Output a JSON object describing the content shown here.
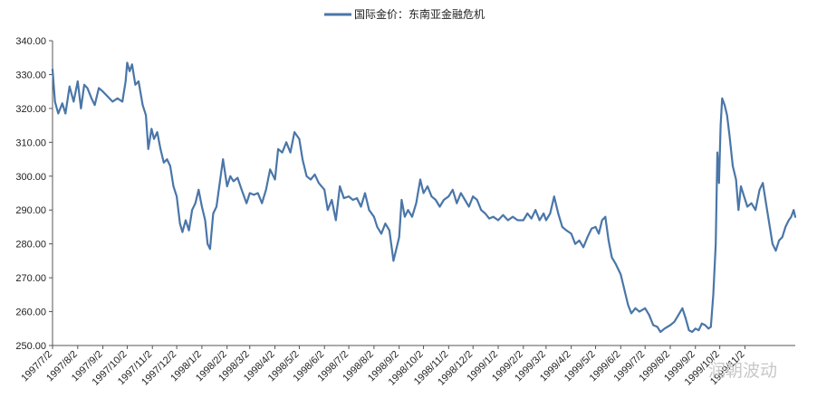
{
  "chart_data": {
    "type": "line",
    "title": "",
    "xlabel": "",
    "ylabel": "",
    "legend_position": "top-center",
    "grid": false,
    "ylim": [
      250,
      340
    ],
    "y_ticks": [
      "250.00",
      "260.00",
      "270.00",
      "280.00",
      "290.00",
      "300.00",
      "310.00",
      "320.00",
      "330.00",
      "340.00"
    ],
    "x_ticks": [
      "1997/7/2",
      "1997/8/2",
      "1997/9/2",
      "1997/10/2",
      "1997/11/2",
      "1997/12/2",
      "1998/1/2",
      "1998/2/2",
      "1998/3/2",
      "1998/4/2",
      "1998/5/2",
      "1998/6/2",
      "1998/7/2",
      "1998/8/2",
      "1998/9/2",
      "1998/10/2",
      "1998/11/2",
      "1998/12/2",
      "1999/1/2",
      "1999/2/2",
      "1999/3/2",
      "1999/4/2",
      "1999/5/2",
      "1999/6/2",
      "1999/7/2",
      "1999/8/2",
      "1999/9/2",
      "1999/10/2",
      "1999/11/2"
    ],
    "series": [
      {
        "name": "国际金价：东南亚金融危机",
        "color": "#4a76a8",
        "points": [
          [
            "1997/7/2",
            331.5
          ],
          [
            "1997/7/5",
            322.0
          ],
          [
            "1997/7/9",
            318.5
          ],
          [
            "1997/7/14",
            321.5
          ],
          [
            "1997/7/18",
            318.5
          ],
          [
            "1997/7/23",
            326.5
          ],
          [
            "1997/7/28",
            322.0
          ],
          [
            "1997/8/2",
            328.0
          ],
          [
            "1997/8/6",
            320.0
          ],
          [
            "1997/8/10",
            327.0
          ],
          [
            "1997/8/14",
            326.0
          ],
          [
            "1997/8/19",
            323.0
          ],
          [
            "1997/8/23",
            321.0
          ],
          [
            "1997/8/28",
            326.0
          ],
          [
            "1997/9/2",
            325.0
          ],
          [
            "1997/9/8",
            323.5
          ],
          [
            "1997/9/14",
            322.0
          ],
          [
            "1997/9/20",
            323.0
          ],
          [
            "1997/9/26",
            322.0
          ],
          [
            "1997/9/30",
            328.0
          ],
          [
            "1997/10/2",
            333.5
          ],
          [
            "1997/10/5",
            331.0
          ],
          [
            "1997/10/8",
            333.0
          ],
          [
            "1997/10/12",
            327.0
          ],
          [
            "1997/10/16",
            328.0
          ],
          [
            "1997/10/21",
            321.0
          ],
          [
            "1997/10/25",
            318.0
          ],
          [
            "1997/10/28",
            308.0
          ],
          [
            "1997/11/1",
            314.0
          ],
          [
            "1997/11/4",
            311.0
          ],
          [
            "1997/11/8",
            313.0
          ],
          [
            "1997/11/12",
            308.0
          ],
          [
            "1997/11/16",
            304.0
          ],
          [
            "1997/11/20",
            305.0
          ],
          [
            "1997/11/24",
            303.0
          ],
          [
            "1997/11/28",
            297.0
          ],
          [
            "1997/12/2",
            294.0
          ],
          [
            "1997/12/6",
            286.0
          ],
          [
            "1997/12/9",
            283.5
          ],
          [
            "1997/12/13",
            287.0
          ],
          [
            "1997/12/17",
            284.0
          ],
          [
            "1997/12/21",
            290.0
          ],
          [
            "1997/12/25",
            292.0
          ],
          [
            "1997/12/29",
            296.0
          ],
          [
            "1998/1/2",
            291.0
          ],
          [
            "1998/1/6",
            287.0
          ],
          [
            "1998/1/9",
            280.0
          ],
          [
            "1998/1/12",
            278.5
          ],
          [
            "1998/1/16",
            289.0
          ],
          [
            "1998/1/20",
            291.0
          ],
          [
            "1998/1/24",
            298.0
          ],
          [
            "1998/1/28",
            305.0
          ],
          [
            "1998/2/2",
            297.0
          ],
          [
            "1998/2/6",
            300.0
          ],
          [
            "1998/2/10",
            298.5
          ],
          [
            "1998/2/15",
            299.5
          ],
          [
            "1998/2/20",
            296.0
          ],
          [
            "1998/2/26",
            292.0
          ],
          [
            "1998/3/2",
            295.0
          ],
          [
            "1998/3/7",
            294.5
          ],
          [
            "1998/3/12",
            295.0
          ],
          [
            "1998/3/17",
            292.0
          ],
          [
            "1998/3/22",
            296.0
          ],
          [
            "1998/3/27",
            302.0
          ],
          [
            "1998/4/2",
            299.0
          ],
          [
            "1998/4/6",
            308.0
          ],
          [
            "1998/4/11",
            307.0
          ],
          [
            "1998/4/16",
            310.0
          ],
          [
            "1998/4/21",
            307.0
          ],
          [
            "1998/4/26",
            313.0
          ],
          [
            "1998/5/2",
            311.0
          ],
          [
            "1998/5/6",
            305.0
          ],
          [
            "1998/5/11",
            300.0
          ],
          [
            "1998/5/16",
            299.0
          ],
          [
            "1998/5/21",
            300.5
          ],
          [
            "1998/5/26",
            298.0
          ],
          [
            "1998/6/2",
            296.0
          ],
          [
            "1998/6/6",
            290.0
          ],
          [
            "1998/6/11",
            293.0
          ],
          [
            "1998/6/16",
            287.0
          ],
          [
            "1998/6/21",
            297.0
          ],
          [
            "1998/6/26",
            293.5
          ],
          [
            "1998/7/2",
            294.0
          ],
          [
            "1998/7/7",
            293.0
          ],
          [
            "1998/7/12",
            293.5
          ],
          [
            "1998/7/17",
            291.0
          ],
          [
            "1998/7/22",
            295.0
          ],
          [
            "1998/7/27",
            290.0
          ],
          [
            "1998/8/2",
            288.0
          ],
          [
            "1998/8/6",
            285.0
          ],
          [
            "1998/8/11",
            283.0
          ],
          [
            "1998/8/16",
            286.0
          ],
          [
            "1998/8/21",
            284.0
          ],
          [
            "1998/8/26",
            275.0
          ],
          [
            "1998/9/2",
            282.0
          ],
          [
            "1998/9/5",
            293.0
          ],
          [
            "1998/9/9",
            288.0
          ],
          [
            "1998/9/13",
            290.0
          ],
          [
            "1998/9/18",
            288.0
          ],
          [
            "1998/9/23",
            292.0
          ],
          [
            "1998/9/28",
            299.0
          ],
          [
            "1998/10/2",
            295.0
          ],
          [
            "1998/10/7",
            297.0
          ],
          [
            "1998/10/12",
            294.0
          ],
          [
            "1998/10/17",
            293.0
          ],
          [
            "1998/10/22",
            291.0
          ],
          [
            "1998/10/27",
            293.0
          ],
          [
            "1998/11/2",
            294.0
          ],
          [
            "1998/11/7",
            296.0
          ],
          [
            "1998/11/12",
            292.0
          ],
          [
            "1998/11/17",
            295.0
          ],
          [
            "1998/11/22",
            293.0
          ],
          [
            "1998/11/27",
            291.0
          ],
          [
            "1998/12/2",
            294.0
          ],
          [
            "1998/12/7",
            293.0
          ],
          [
            "1998/12/12",
            290.0
          ],
          [
            "1998/12/17",
            289.0
          ],
          [
            "1998/12/22",
            287.5
          ],
          [
            "1998/12/27",
            288.0
          ],
          [
            "1999/1/2",
            287.0
          ],
          [
            "1999/1/8",
            288.5
          ],
          [
            "1999/1/14",
            287.0
          ],
          [
            "1999/1/20",
            288.0
          ],
          [
            "1999/1/26",
            287.0
          ],
          [
            "1999/2/2",
            287.0
          ],
          [
            "1999/2/7",
            289.0
          ],
          [
            "1999/2/12",
            287.5
          ],
          [
            "1999/2/17",
            290.0
          ],
          [
            "1999/2/22",
            287.0
          ],
          [
            "1999/2/27",
            289.0
          ],
          [
            "1999/3/2",
            287.0
          ],
          [
            "1999/3/7",
            289.0
          ],
          [
            "1999/3/12",
            294.0
          ],
          [
            "1999/3/17",
            289.0
          ],
          [
            "1999/3/22",
            285.0
          ],
          [
            "1999/3/27",
            284.0
          ],
          [
            "1999/4/2",
            283.0
          ],
          [
            "1999/4/7",
            280.0
          ],
          [
            "1999/4/12",
            281.0
          ],
          [
            "1999/4/17",
            279.0
          ],
          [
            "1999/4/22",
            282.0
          ],
          [
            "1999/4/27",
            284.5
          ],
          [
            "1999/5/2",
            285.0
          ],
          [
            "1999/5/6",
            283.0
          ],
          [
            "1999/5/10",
            287.0
          ],
          [
            "1999/5/14",
            288.0
          ],
          [
            "1999/5/18",
            281.0
          ],
          [
            "1999/5/22",
            276.0
          ],
          [
            "1999/5/27",
            274.0
          ],
          [
            "1999/6/2",
            271.0
          ],
          [
            "1999/6/7",
            266.0
          ],
          [
            "1999/6/11",
            262.0
          ],
          [
            "1999/6/15",
            259.5
          ],
          [
            "1999/6/20",
            261.0
          ],
          [
            "1999/6/25",
            260.0
          ],
          [
            "1999/7/2",
            261.0
          ],
          [
            "1999/7/7",
            259.0
          ],
          [
            "1999/7/12",
            256.0
          ],
          [
            "1999/7/17",
            255.5
          ],
          [
            "1999/7/21",
            254.0
          ],
          [
            "1999/7/26",
            255.0
          ],
          [
            "1999/8/2",
            256.0
          ],
          [
            "1999/8/7",
            257.0
          ],
          [
            "1999/8/12",
            259.0
          ],
          [
            "1999/8/17",
            261.0
          ],
          [
            "1999/8/21",
            258.0
          ],
          [
            "1999/8/25",
            254.5
          ],
          [
            "1999/8/29",
            254.0
          ],
          [
            "1999/9/2",
            255.0
          ],
          [
            "1999/9/6",
            254.5
          ],
          [
            "1999/9/10",
            256.5
          ],
          [
            "1999/9/14",
            256.0
          ],
          [
            "1999/9/18",
            255.0
          ],
          [
            "1999/9/21",
            255.5
          ],
          [
            "1999/9/24",
            265.0
          ],
          [
            "1999/9/27",
            280.0
          ],
          [
            "1999/9/29",
            307.0
          ],
          [
            "1999/10/1",
            298.0
          ],
          [
            "1999/10/3",
            315.0
          ],
          [
            "1999/10/5",
            323.0
          ],
          [
            "1999/10/8",
            321.0
          ],
          [
            "1999/10/11",
            318.0
          ],
          [
            "1999/10/14",
            312.0
          ],
          [
            "1999/10/18",
            303.0
          ],
          [
            "1999/10/22",
            299.0
          ],
          [
            "1999/10/25",
            290.0
          ],
          [
            "1999/10/28",
            297.0
          ],
          [
            "1999/11/1",
            294.0
          ],
          [
            "1999/11/5",
            291.0
          ],
          [
            "1999/11/10",
            292.0
          ],
          [
            "1999/11/15",
            290.0
          ],
          [
            "1999/11/20",
            296.0
          ],
          [
            "1999/11/24",
            298.0
          ],
          [
            "1999/11/28",
            292.0
          ],
          [
            "1999/12/2",
            286.0
          ],
          [
            "1999/12/6",
            280.0
          ],
          [
            "1999/12/10",
            278.0
          ],
          [
            "1999/12/14",
            281.0
          ],
          [
            "1999/12/18",
            282.0
          ],
          [
            "1999/12/22",
            285.0
          ],
          [
            "1999/12/26",
            287.0
          ],
          [
            "1999/12/29",
            288.0
          ],
          [
            "2000/1/1",
            290.0
          ],
          [
            "2000/1/3",
            288.0
          ]
        ]
      }
    ]
  },
  "watermark": "润朝波动"
}
